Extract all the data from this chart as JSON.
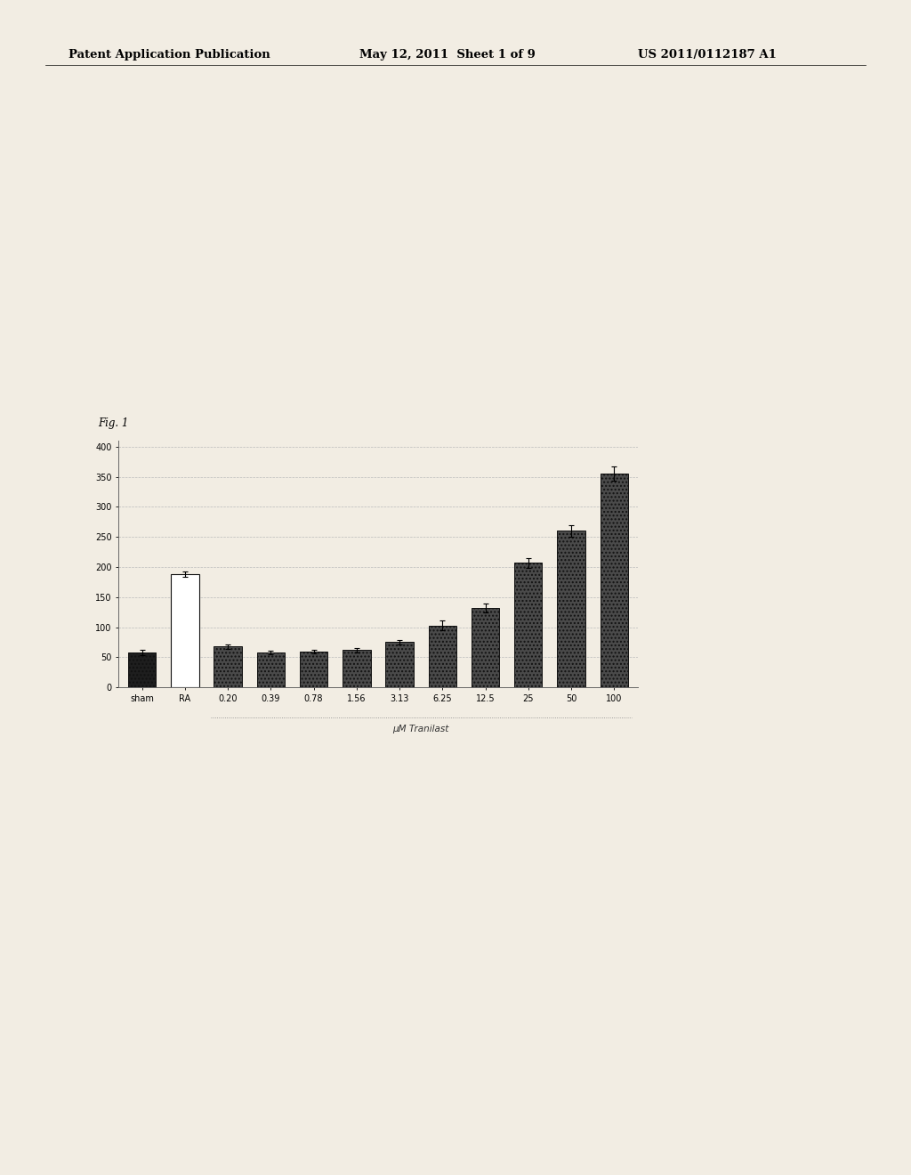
{
  "categories": [
    "sham",
    "RA",
    "0.20",
    "0.39",
    "0.78",
    "1.56",
    "3.13",
    "6.25",
    "12.5",
    "25",
    "50",
    "100"
  ],
  "values": [
    58,
    188,
    68,
    58,
    60,
    62,
    75,
    103,
    132,
    207,
    260,
    355
  ],
  "errors": [
    4,
    5,
    4,
    3,
    3,
    4,
    4,
    8,
    7,
    8,
    10,
    12
  ],
  "xlabel": "μM Tranilast",
  "ylim": [
    0,
    410
  ],
  "yticks": [
    0,
    50,
    100,
    150,
    200,
    250,
    300,
    350,
    400
  ],
  "fig_label": "Fig. 1",
  "header_left": "Patent Application Publication",
  "header_center": "May 12, 2011  Sheet 1 of 9",
  "header_right": "US 2011/0112187 A1",
  "background_color": "#f2ede3",
  "plot_bg_color": "#f2ede3",
  "grid_color": "#bbbbbb",
  "bar_width": 0.65,
  "tick_fontsize": 7,
  "xlabel_fontsize": 7.5,
  "header_fontsize": 9.5,
  "fig_label_fontsize": 8.5
}
